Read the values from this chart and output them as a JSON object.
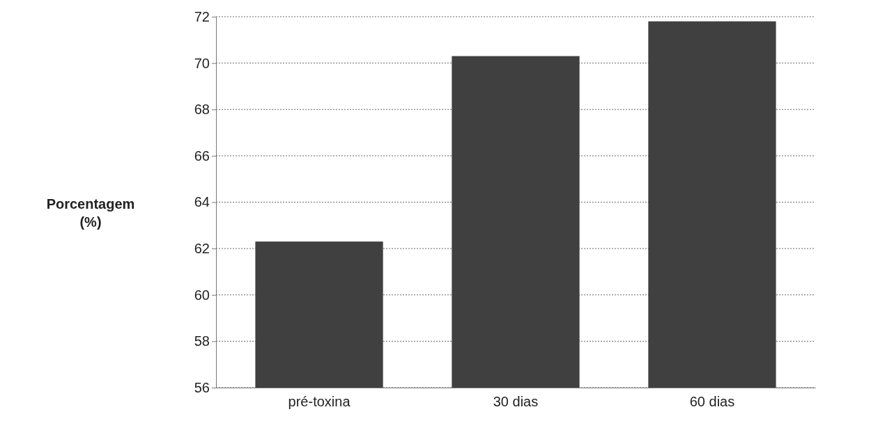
{
  "chart_data": {
    "type": "bar",
    "ylabel": "Porcentagem (%)",
    "categories": [
      "pré-toxina",
      "30 dias",
      "60 dias"
    ],
    "values": [
      62.3,
      70.3,
      71.8
    ],
    "color": "#404040",
    "ylim": [
      56,
      72
    ],
    "yticks": [
      56,
      58,
      60,
      62,
      64,
      66,
      68,
      70,
      72
    ],
    "grid": "y"
  }
}
